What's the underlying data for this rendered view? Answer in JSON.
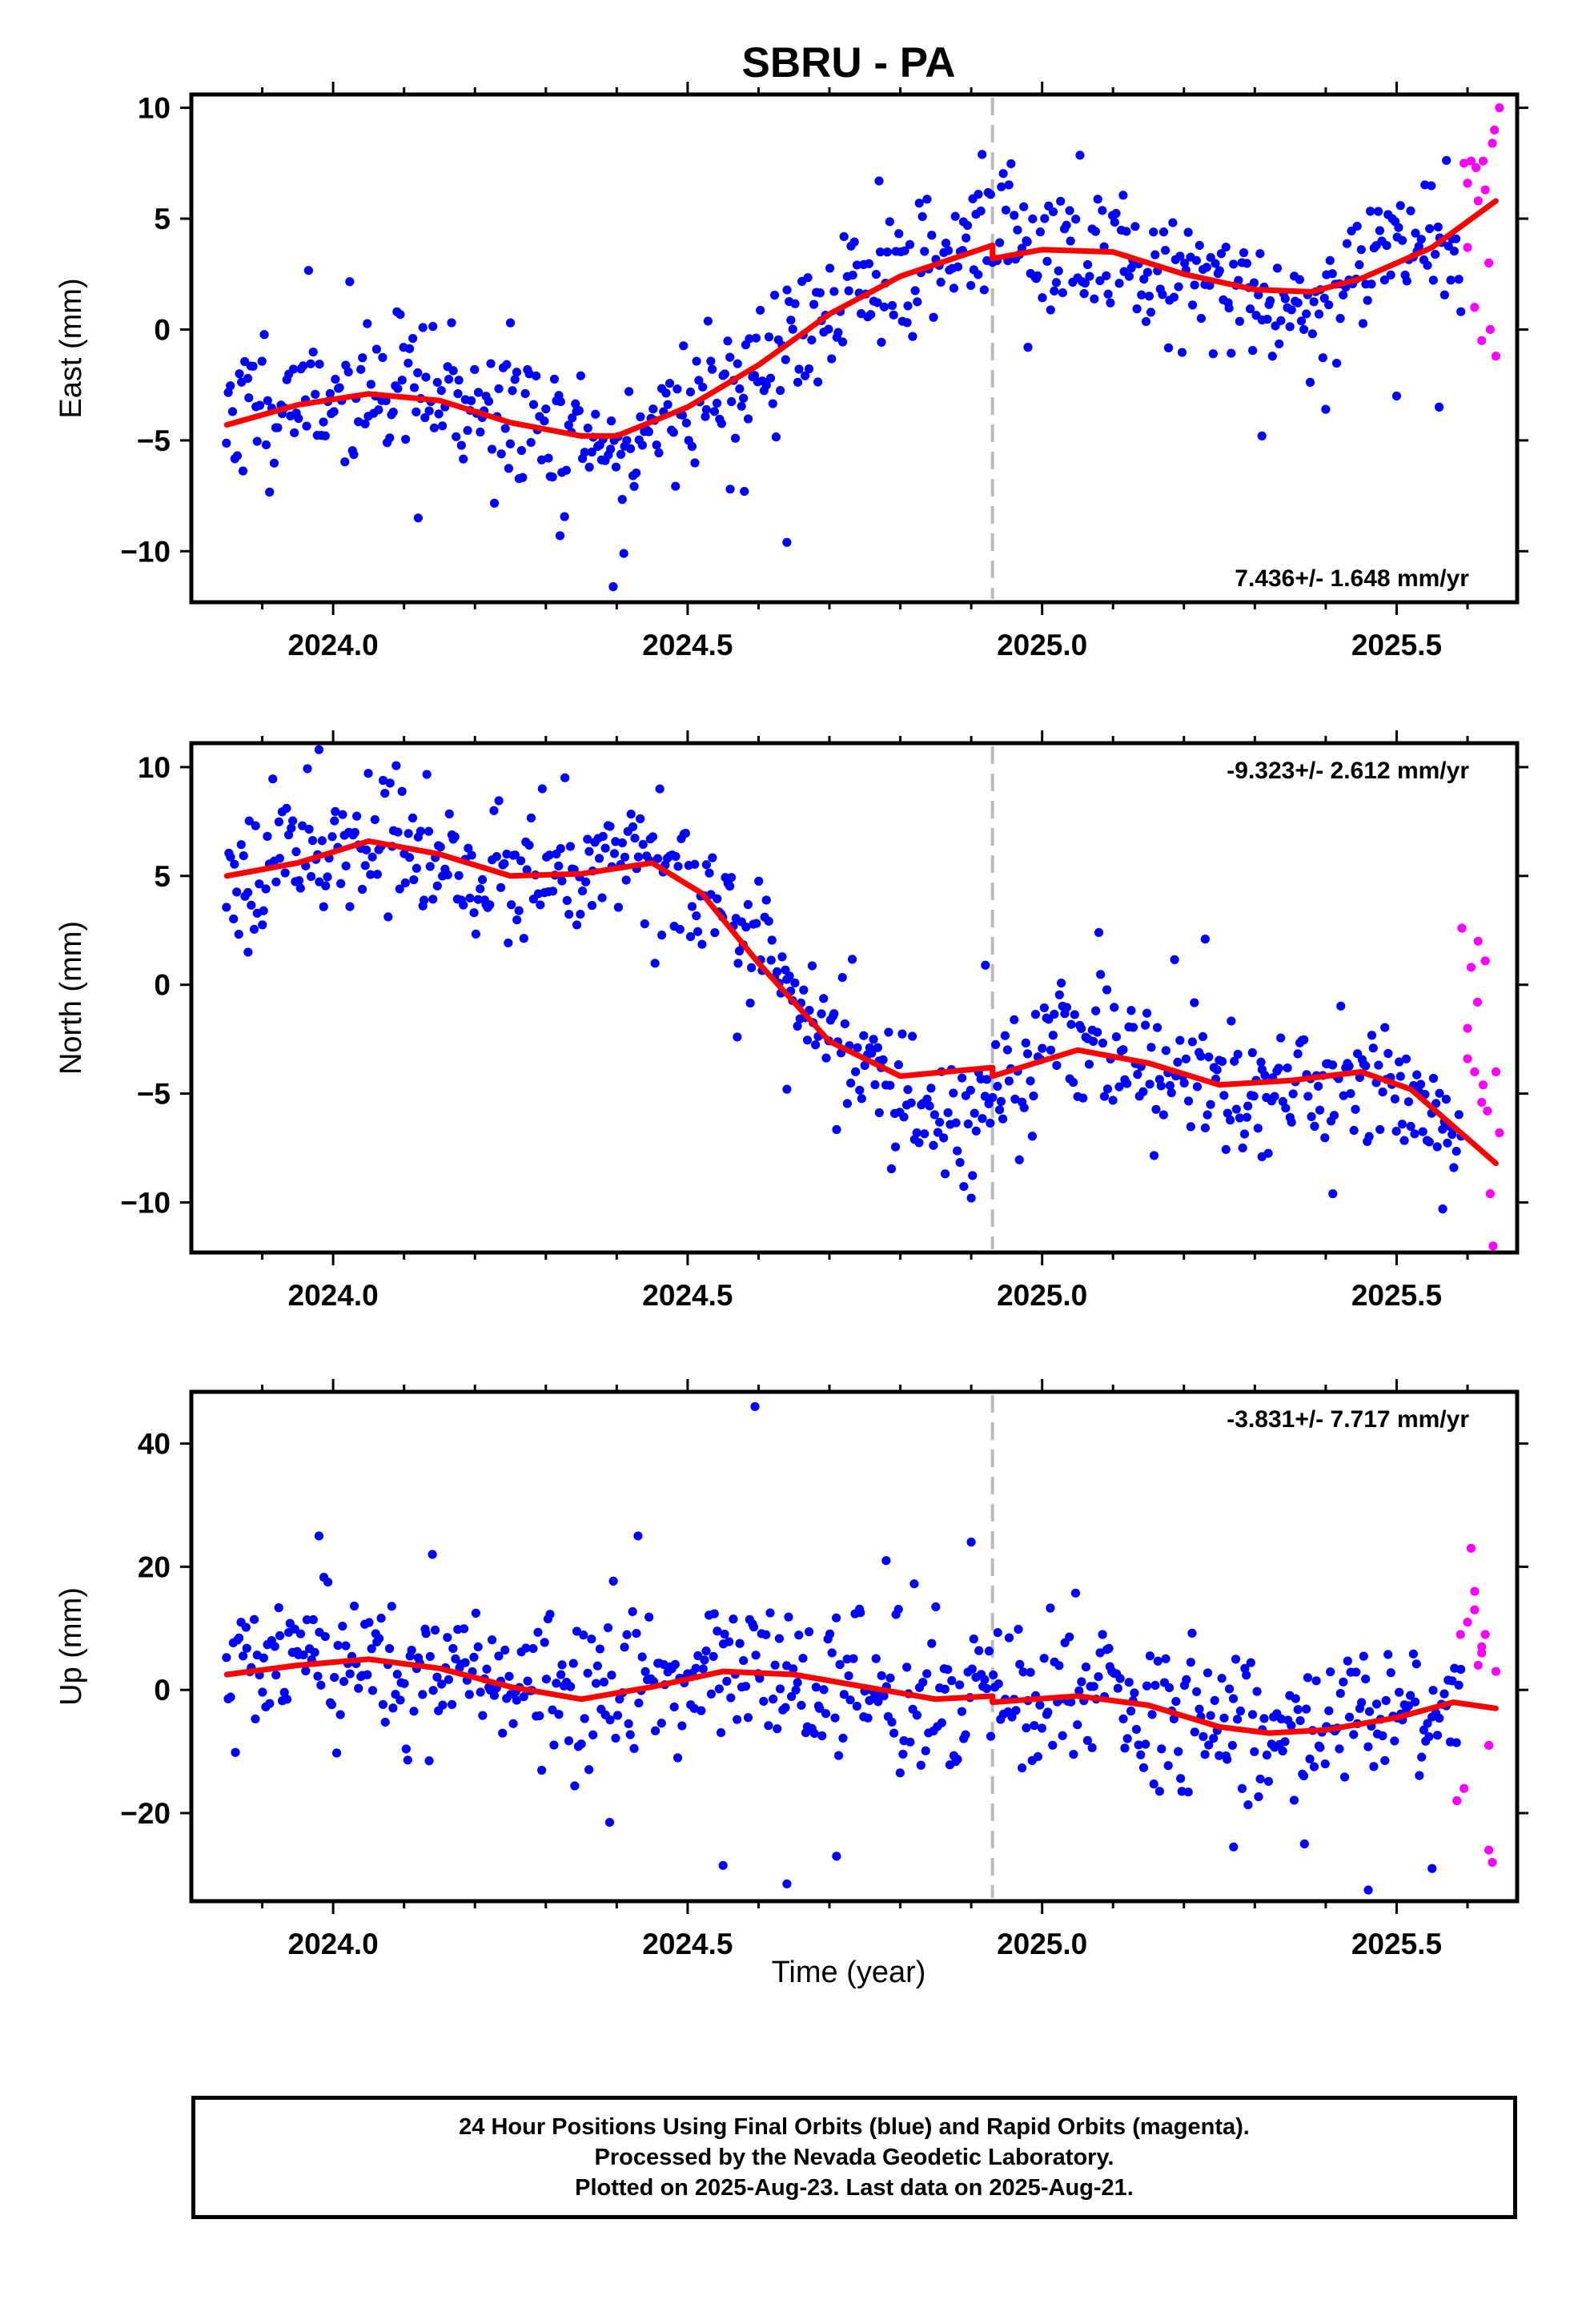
{
  "figure": {
    "title": "SBRU - PA",
    "xlabel": "Time (year)",
    "caption": [
      "24 Hour Positions Using Final Orbits (blue) and Rapid Orbits (magenta).",
      "Processed by the Nevada Geodetic Laboratory.",
      "Plotted on 2025-Aug-23. Last data on 2025-Aug-21."
    ],
    "colors": {
      "final": "#0000ff",
      "rapid": "#ff00ff",
      "model": "#ff0000",
      "marker": "#bbbbbb"
    }
  },
  "chart_data": [
    {
      "type": "scatter",
      "ylabel": "East (mm)",
      "xlim": [
        2023.8,
        2025.67
      ],
      "ylim": [
        -12.3,
        10.6
      ],
      "xticks": [
        2024.0,
        2024.5,
        2025.0,
        2025.5
      ],
      "xtick_labels": [
        "2024.0",
        "2024.5",
        "2025.0",
        "2025.5"
      ],
      "yticks": [
        -10,
        -5,
        0,
        5,
        10
      ],
      "ytick_labels": [
        "−10",
        "−5",
        "0",
        "5",
        "10"
      ],
      "rate": "7.436+/- 1.648 mm/yr",
      "rate_position": "bottom-right",
      "marker_line_x": 2024.93,
      "model_curve": {
        "x": [
          2023.85,
          2023.95,
          2024.05,
          2024.15,
          2024.25,
          2024.35,
          2024.4,
          2024.5,
          2024.6,
          2024.7,
          2024.8,
          2024.93,
          2024.93,
          2025.0,
          2025.1,
          2025.2,
          2025.3,
          2025.38,
          2025.45,
          2025.55,
          2025.64
        ],
        "y": [
          -4.3,
          -3.4,
          -2.9,
          -3.2,
          -4.2,
          -4.8,
          -4.8,
          -3.5,
          -1.6,
          0.7,
          2.4,
          3.8,
          3.2,
          3.6,
          3.5,
          2.5,
          1.8,
          1.7,
          2.3,
          3.7,
          5.8
        ]
      },
      "final_series": {
        "x_start": 2023.85,
        "x_end": 2025.59,
        "count": 600,
        "seed": 11,
        "trend": {
          "x": [
            2023.85,
            2024.05,
            2024.15,
            2024.25,
            2024.35,
            2024.4,
            2024.5,
            2024.6,
            2024.7,
            2024.8,
            2024.93,
            2025.0,
            2025.1,
            2025.2,
            2025.3,
            2025.38,
            2025.45,
            2025.59
          ],
          "y": [
            -3.6,
            -2.6,
            -3.0,
            -4.0,
            -5.0,
            -5.6,
            -3.2,
            -1.8,
            0.8,
            2.6,
            4.6,
            3.2,
            3.5,
            2.6,
            1.6,
            0.4,
            3.6,
            4.3
          ]
        },
        "scatter": 1.6,
        "outliers": [
          [
            2024.12,
            -8.5
          ],
          [
            2024.32,
            -9.3
          ],
          [
            2024.395,
            -11.6
          ],
          [
            2024.41,
            -10.1
          ],
          [
            2024.64,
            -9.6
          ],
          [
            2024.56,
            -7.2
          ],
          [
            2024.58,
            -7.3
          ],
          [
            2024.25,
            0.3
          ],
          [
            2024.09,
            0.8
          ],
          [
            2024.77,
            6.7
          ],
          [
            2024.91,
            6.1
          ],
          [
            2025.31,
            -4.8
          ],
          [
            2025.4,
            -3.6
          ],
          [
            2025.5,
            -3.0
          ],
          [
            2025.56,
            -3.5
          ],
          [
            2024.98,
            -0.8
          ]
        ]
      },
      "rapid_series": {
        "x": [
          2025.595,
          2025.6,
          2025.605,
          2025.61,
          2025.615,
          2025.62,
          2025.625,
          2025.63,
          2025.635,
          2025.64,
          2025.6,
          2025.612,
          2025.622,
          2025.632,
          2025.638,
          2025.645
        ],
        "y": [
          7.5,
          3.7,
          7.6,
          1.0,
          5.8,
          -0.5,
          6.3,
          3.0,
          8.4,
          -1.2,
          6.6,
          7.3,
          7.6,
          0.0,
          9.0,
          10.0
        ]
      }
    },
    {
      "type": "scatter",
      "ylabel": "North (mm)",
      "xlim": [
        2023.8,
        2025.67
      ],
      "ylim": [
        -12.3,
        11.1
      ],
      "xticks": [
        2024.0,
        2024.5,
        2025.0,
        2025.5
      ],
      "xtick_labels": [
        "2024.0",
        "2024.5",
        "2025.0",
        "2025.5"
      ],
      "yticks": [
        -10,
        -5,
        0,
        5,
        10
      ],
      "ytick_labels": [
        "−10",
        "−5",
        "0",
        "5",
        "10"
      ],
      "rate": "-9.323+/- 2.612 mm/yr",
      "rate_position": "top-right",
      "marker_line_x": 2024.93,
      "model_curve": {
        "x": [
          2023.85,
          2023.95,
          2024.05,
          2024.15,
          2024.25,
          2024.35,
          2024.45,
          2024.52,
          2024.6,
          2024.7,
          2024.8,
          2024.93,
          2024.93,
          2025.05,
          2025.15,
          2025.25,
          2025.35,
          2025.45,
          2025.52,
          2025.64
        ],
        "y": [
          5.0,
          5.6,
          6.6,
          6.0,
          5.0,
          5.1,
          5.6,
          4.2,
          1.0,
          -2.6,
          -4.2,
          -3.8,
          -4.2,
          -3.0,
          -3.6,
          -4.6,
          -4.4,
          -4.0,
          -4.8,
          -8.2
        ]
      },
      "final_series": {
        "x_start": 2023.85,
        "x_end": 2025.59,
        "count": 600,
        "seed": 23,
        "trend": {
          "x": [
            2023.85,
            2024.0,
            2024.1,
            2024.2,
            2024.3,
            2024.45,
            2024.52,
            2024.6,
            2024.7,
            2024.8,
            2024.88,
            2024.93,
            2025.05,
            2025.15,
            2025.25,
            2025.35,
            2025.45,
            2025.59
          ],
          "y": [
            5.5,
            6.8,
            6.4,
            4.8,
            5.4,
            6.6,
            3.8,
            1.2,
            -2.4,
            -4.6,
            -6.4,
            -4.2,
            -2.4,
            -3.6,
            -4.6,
            -4.6,
            -4.4,
            -7.2
          ]
        },
        "scatter": 1.5,
        "outliers": [
          [
            2023.98,
            10.8
          ],
          [
            2023.88,
            1.5
          ],
          [
            2024.57,
            -2.4
          ],
          [
            2024.64,
            -4.8
          ],
          [
            2024.77,
            -3.5
          ],
          [
            2024.9,
            -9.8
          ],
          [
            2025.08,
            2.4
          ],
          [
            2025.23,
            2.1
          ],
          [
            2025.31,
            -7.9
          ],
          [
            2025.41,
            -9.6
          ],
          [
            2025.565,
            -10.3
          ],
          [
            2024.92,
            0.9
          ]
        ]
      },
      "rapid_series": {
        "x": [
          2025.592,
          2025.6,
          2025.605,
          2025.61,
          2025.615,
          2025.62,
          2025.625,
          2025.628,
          2025.632,
          2025.636,
          2025.64,
          2025.645,
          2025.6,
          2025.614,
          2025.622
        ],
        "y": [
          2.6,
          -2.0,
          0.8,
          -4.0,
          2.0,
          -5.4,
          1.1,
          -5.8,
          -9.6,
          -12.0,
          -4.0,
          -6.8,
          -3.4,
          -0.8,
          -4.6
        ]
      }
    },
    {
      "type": "scatter",
      "ylabel": "Up (mm)",
      "xlim": [
        2023.8,
        2025.67
      ],
      "ylim": [
        -34.3,
        48.4
      ],
      "xticks": [
        2024.0,
        2024.5,
        2025.0,
        2025.5
      ],
      "xtick_labels": [
        "2024.0",
        "2024.5",
        "2025.0",
        "2025.5"
      ],
      "yticks": [
        -20,
        0,
        20,
        40
      ],
      "ytick_labels": [
        "−20",
        "0",
        "20",
        "40"
      ],
      "rate": "-3.831+/- 7.717 mm/yr",
      "rate_position": "top-right",
      "marker_line_x": 2024.93,
      "model_curve": {
        "x": [
          2023.85,
          2023.95,
          2024.05,
          2024.15,
          2024.25,
          2024.35,
          2024.45,
          2024.55,
          2024.65,
          2024.75,
          2024.85,
          2024.93,
          2024.93,
          2025.05,
          2025.15,
          2025.25,
          2025.32,
          2025.4,
          2025.5,
          2025.58,
          2025.64
        ],
        "y": [
          2.5,
          4.0,
          5.0,
          3.5,
          0.5,
          -1.5,
          0.5,
          3.0,
          2.5,
          0.5,
          -1.5,
          -1.0,
          -2.0,
          -1.0,
          -2.5,
          -6.0,
          -7.0,
          -6.5,
          -4.5,
          -2.0,
          -3.0
        ]
      },
      "final_series": {
        "x_start": 2023.85,
        "x_end": 2025.59,
        "count": 600,
        "seed": 37,
        "trend": {
          "x": [
            2023.85,
            2024.05,
            2024.2,
            2024.35,
            2024.55,
            2024.7,
            2024.85,
            2025.0,
            2025.15,
            2025.3,
            2025.45,
            2025.59
          ],
          "y": [
            2.0,
            4.5,
            2.0,
            -1.5,
            3.0,
            1.0,
            -1.5,
            0.0,
            -3.0,
            -7.0,
            -4.5,
            -1.0
          ]
        },
        "scatter": 6.0,
        "outliers": [
          [
            2024.595,
            46.0
          ],
          [
            2024.9,
            24.0
          ],
          [
            2024.43,
            25.0
          ],
          [
            2024.55,
            -28.5
          ],
          [
            2024.64,
            -31.5
          ],
          [
            2024.39,
            -21.5
          ],
          [
            2024.71,
            -27.0
          ],
          [
            2025.27,
            -25.5
          ],
          [
            2025.37,
            -25.0
          ],
          [
            2025.46,
            -32.5
          ],
          [
            2025.55,
            -29.0
          ],
          [
            2024.78,
            21.0
          ],
          [
            2023.98,
            25.0
          ],
          [
            2024.14,
            22.0
          ]
        ]
      },
      "rapid_series": {
        "x": [
          2025.585,
          2025.59,
          2025.595,
          2025.6,
          2025.605,
          2025.61,
          2025.615,
          2025.62,
          2025.625,
          2025.63,
          2025.635,
          2025.64,
          2025.61,
          2025.62,
          2025.63
        ],
        "y": [
          -18.0,
          9.0,
          -16.0,
          11.0,
          23.0,
          16.0,
          4.0,
          7.0,
          9.0,
          -26.0,
          -28.0,
          3.0,
          13.0,
          6.0,
          -9.0
        ]
      }
    }
  ]
}
